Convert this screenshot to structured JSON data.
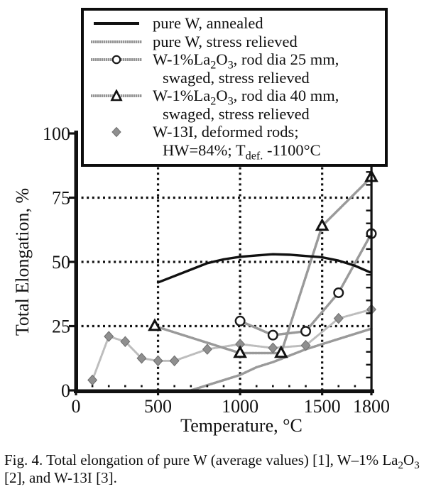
{
  "caption": {
    "parts": [
      "Fig. 4. Total elongation of pure W (average values) [1], W–1% La",
      "2",
      "O",
      "3",
      " [2], and W-13I [3]."
    ]
  },
  "legend": {
    "items": [
      {
        "label": "pure W, annealed",
        "marker": "solid-black-line"
      },
      {
        "label": "pure W, stress relieved",
        "marker": "gray-textured-line"
      },
      {
        "parts": [
          "W-1%La",
          "2",
          "O",
          "3",
          ", rod dia 25 mm,"
        ],
        "line2": "swaged, stress relieved",
        "marker": "gray-line-open-circle"
      },
      {
        "parts": [
          "W-1%La",
          "2",
          "O",
          "3",
          ", rod dia 40 mm,"
        ],
        "line2": "swaged, stress relieved",
        "marker": "gray-line-open-triangle"
      },
      {
        "label": "W-13I, deformed rods;",
        "line2_parts": [
          "HW=84%; T",
          "def.",
          " -1100°C"
        ],
        "marker": "gray-diamond"
      }
    ]
  },
  "chart_data": {
    "type": "line",
    "title": "",
    "xlabel": "Temperature, °C",
    "ylabel": "Total Elongation, %",
    "xlim": [
      0,
      1800
    ],
    "ylim": [
      0,
      100
    ],
    "xticks": [
      0,
      500,
      1000,
      1500,
      1800
    ],
    "yticks": [
      0,
      25,
      50,
      75,
      100
    ],
    "x_minor_step": 100,
    "y_minor_step": 5,
    "grid": {
      "x_at": [
        500,
        1000,
        1500
      ],
      "y_at": [
        25,
        50,
        75
      ],
      "style": "dotted",
      "color": "#111111"
    },
    "legend_position": "top",
    "frame_color": "#111111",
    "series": [
      {
        "name": "pure W, stress relieved",
        "color": "#9a9a9a",
        "line": "textured",
        "width": 3.5,
        "marker": "none",
        "x": [
          700,
          800,
          900,
          1000,
          1100,
          1200,
          1300,
          1400,
          1500,
          1600,
          1700,
          1800
        ],
        "y": [
          0,
          2,
          4,
          6,
          9,
          11,
          13.5,
          16,
          18,
          20,
          22,
          24
        ]
      },
      {
        "name": "W-13I, deformed rods; HW=84%; Tdef. -1100C",
        "color": "#bdbdbd",
        "line": "textured",
        "width": 3,
        "marker": "diamond",
        "x": [
          100,
          200,
          300,
          400,
          500,
          600,
          800,
          1000,
          1200,
          1400,
          1600,
          1800
        ],
        "y": [
          4,
          21,
          19,
          12.5,
          11.5,
          11.5,
          16,
          18,
          16.5,
          17.5,
          28,
          31.5
        ]
      },
      {
        "name": "W-1%La2O3, rod dia 25 mm, swaged, stress relieved",
        "color": "#9a9a9a",
        "line": "textured",
        "width": 3.5,
        "marker": "circle",
        "x": [
          1000,
          1200,
          1400,
          1600,
          1800
        ],
        "y": [
          27,
          21.5,
          23,
          38,
          61
        ]
      },
      {
        "name": "W-1%La2O3, rod dia 40 mm, swaged, stress relieved",
        "color": "#9a9a9a",
        "line": "textured",
        "width": 3.5,
        "marker": "triangle",
        "x": [
          480,
          1000,
          1250,
          1500,
          1800
        ],
        "y": [
          25,
          14.5,
          14.5,
          64,
          83
        ]
      },
      {
        "name": "pure W, annealed",
        "color": "#111111",
        "line": "solid",
        "width": 3.4,
        "marker": "none",
        "x": [
          500,
          600,
          700,
          800,
          900,
          1000,
          1100,
          1200,
          1300,
          1400,
          1500,
          1600,
          1700,
          1790
        ],
        "y": [
          42,
          44.5,
          47,
          49.5,
          51,
          52,
          52.5,
          53,
          52.8,
          52.3,
          51.8,
          50.5,
          48.5,
          46
        ]
      }
    ]
  }
}
